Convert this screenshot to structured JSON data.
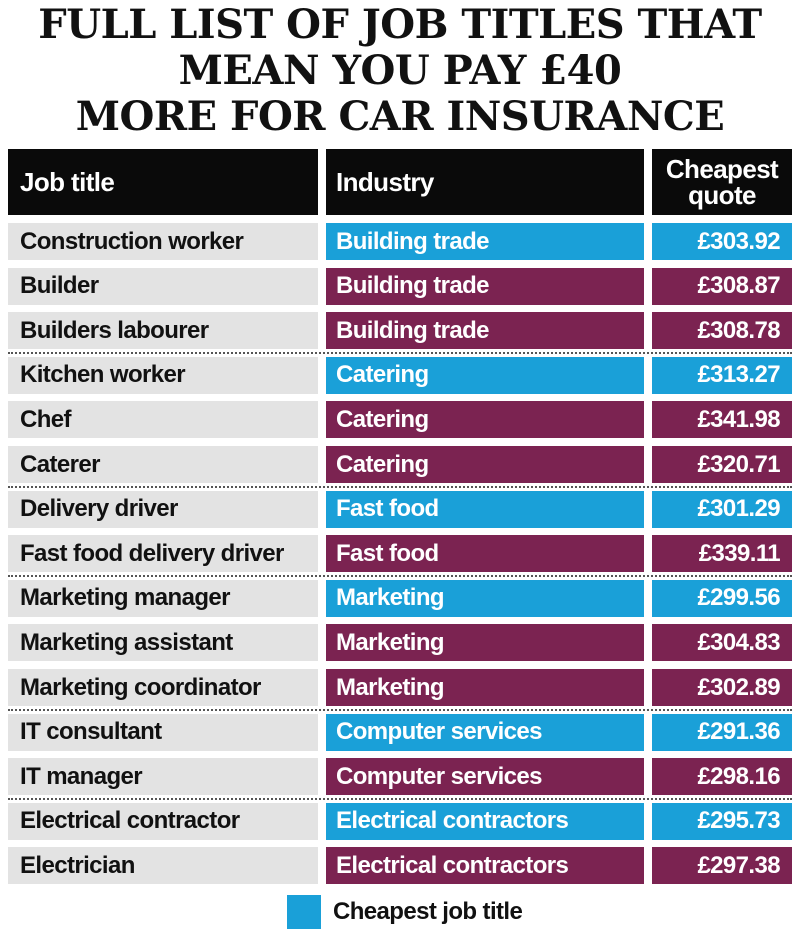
{
  "title_lines": [
    "FULL LIST OF JOB TITLES THAT",
    "MEAN YOU PAY £40",
    "MORE FOR CAR INSURANCE"
  ],
  "colors": {
    "cheapest": "#1aa0d8",
    "other": "#7b2351"
  },
  "legend": {
    "label": "Cheapest job title"
  },
  "chart_data": {
    "type": "table",
    "title": "FULL LIST OF JOB TITLES THAT MEAN YOU PAY £40 MORE FOR CAR INSURANCE",
    "columns": [
      "Job title",
      "Industry",
      "Cheapest quote"
    ],
    "header_quote_lines": [
      "Cheapest",
      "quote"
    ],
    "rows": [
      {
        "job": "Construction worker",
        "industry": "Building trade",
        "quote": "£303.92",
        "value": 303.92,
        "cheapest": true
      },
      {
        "job": "Builder",
        "industry": "Building trade",
        "quote": "£308.87",
        "value": 308.87,
        "cheapest": false
      },
      {
        "job": "Builders labourer",
        "industry": "Building trade",
        "quote": "£308.78",
        "value": 308.78,
        "cheapest": false
      },
      {
        "job": "Kitchen worker",
        "industry": "Catering",
        "quote": "£313.27",
        "value": 313.27,
        "cheapest": true
      },
      {
        "job": "Chef",
        "industry": "Catering",
        "quote": "£341.98",
        "value": 341.98,
        "cheapest": false
      },
      {
        "job": "Caterer",
        "industry": "Catering",
        "quote": "£320.71",
        "value": 320.71,
        "cheapest": false
      },
      {
        "job": "Delivery driver",
        "industry": "Fast food",
        "quote": "£301.29",
        "value": 301.29,
        "cheapest": true
      },
      {
        "job": "Fast food delivery driver",
        "industry": "Fast food",
        "quote": "£339.11",
        "value": 339.11,
        "cheapest": false
      },
      {
        "job": "Marketing manager",
        "industry": "Marketing",
        "quote": "£299.56",
        "value": 299.56,
        "cheapest": true
      },
      {
        "job": "Marketing assistant",
        "industry": "Marketing",
        "quote": "£304.83",
        "value": 304.83,
        "cheapest": false
      },
      {
        "job": "Marketing coordinator",
        "industry": "Marketing",
        "quote": "£302.89",
        "value": 302.89,
        "cheapest": false
      },
      {
        "job": "IT consultant",
        "industry": "Computer services",
        "quote": "£291.36",
        "value": 291.36,
        "cheapest": true
      },
      {
        "job": "IT manager",
        "industry": "Computer services",
        "quote": "£298.16",
        "value": 298.16,
        "cheapest": false
      },
      {
        "job": "Electrical contractor",
        "industry": "Electrical contractors",
        "quote": "£295.73",
        "value": 295.73,
        "cheapest": true
      },
      {
        "job": "Electrician",
        "industry": "Electrical contractors",
        "quote": "£297.38",
        "value": 297.38,
        "cheapest": false
      }
    ]
  }
}
